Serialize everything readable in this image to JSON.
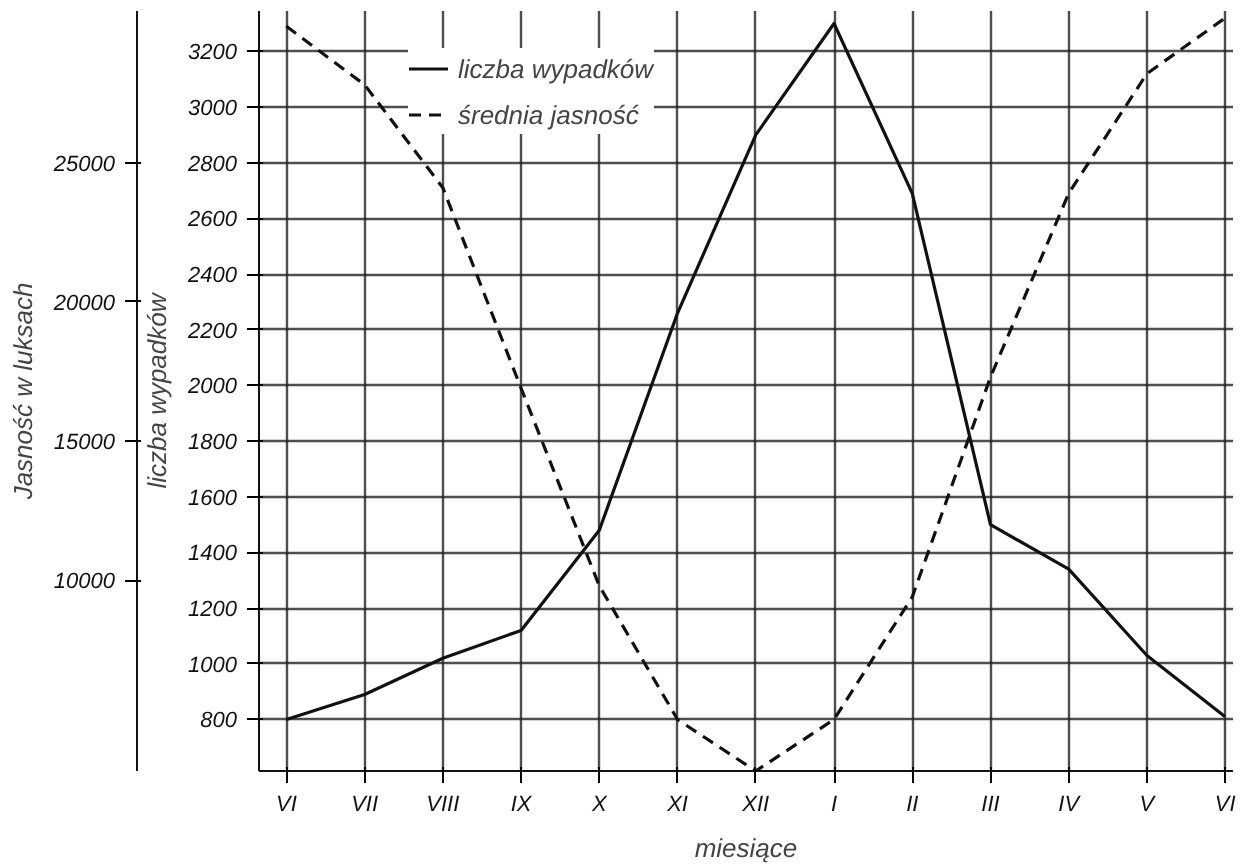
{
  "chart_data": {
    "type": "line",
    "xlabel": "miesiące",
    "ylabel": "liczba wypadków",
    "y2label": "Jasność w luksach",
    "categories": [
      "VI",
      "VII",
      "VIII",
      "IX",
      "X",
      "XI",
      "XII",
      "I",
      "II",
      "III",
      "IV",
      "V",
      "VI"
    ],
    "series": [
      {
        "name": "liczba wypadków",
        "color": "#111111",
        "line_style": "solid",
        "values": [
          800,
          890,
          1020,
          1120,
          1480,
          2260,
          2900,
          3300,
          2690,
          1500,
          1340,
          1030,
          810
        ]
      },
      {
        "name": "średnia jasność",
        "color": "#111111",
        "line_style": "dashed",
        "axis": "y2",
        "values": [
          29900,
          27800,
          24100,
          16900,
          9800,
          5000,
          3150,
          5000,
          9400,
          17300,
          23900,
          28200,
          30200
        ]
      }
    ],
    "ylim": [
      615,
      3345
    ],
    "yticks": [
      800,
      1000,
      1200,
      1400,
      1600,
      1800,
      2000,
      2200,
      2400,
      2600,
      2800,
      3000,
      3200
    ],
    "y2lim": [
      3150,
      30450
    ],
    "y2ticks": [
      10000,
      15000,
      20000,
      25000
    ],
    "grid": true,
    "legend": "top left",
    "marker": "none"
  }
}
